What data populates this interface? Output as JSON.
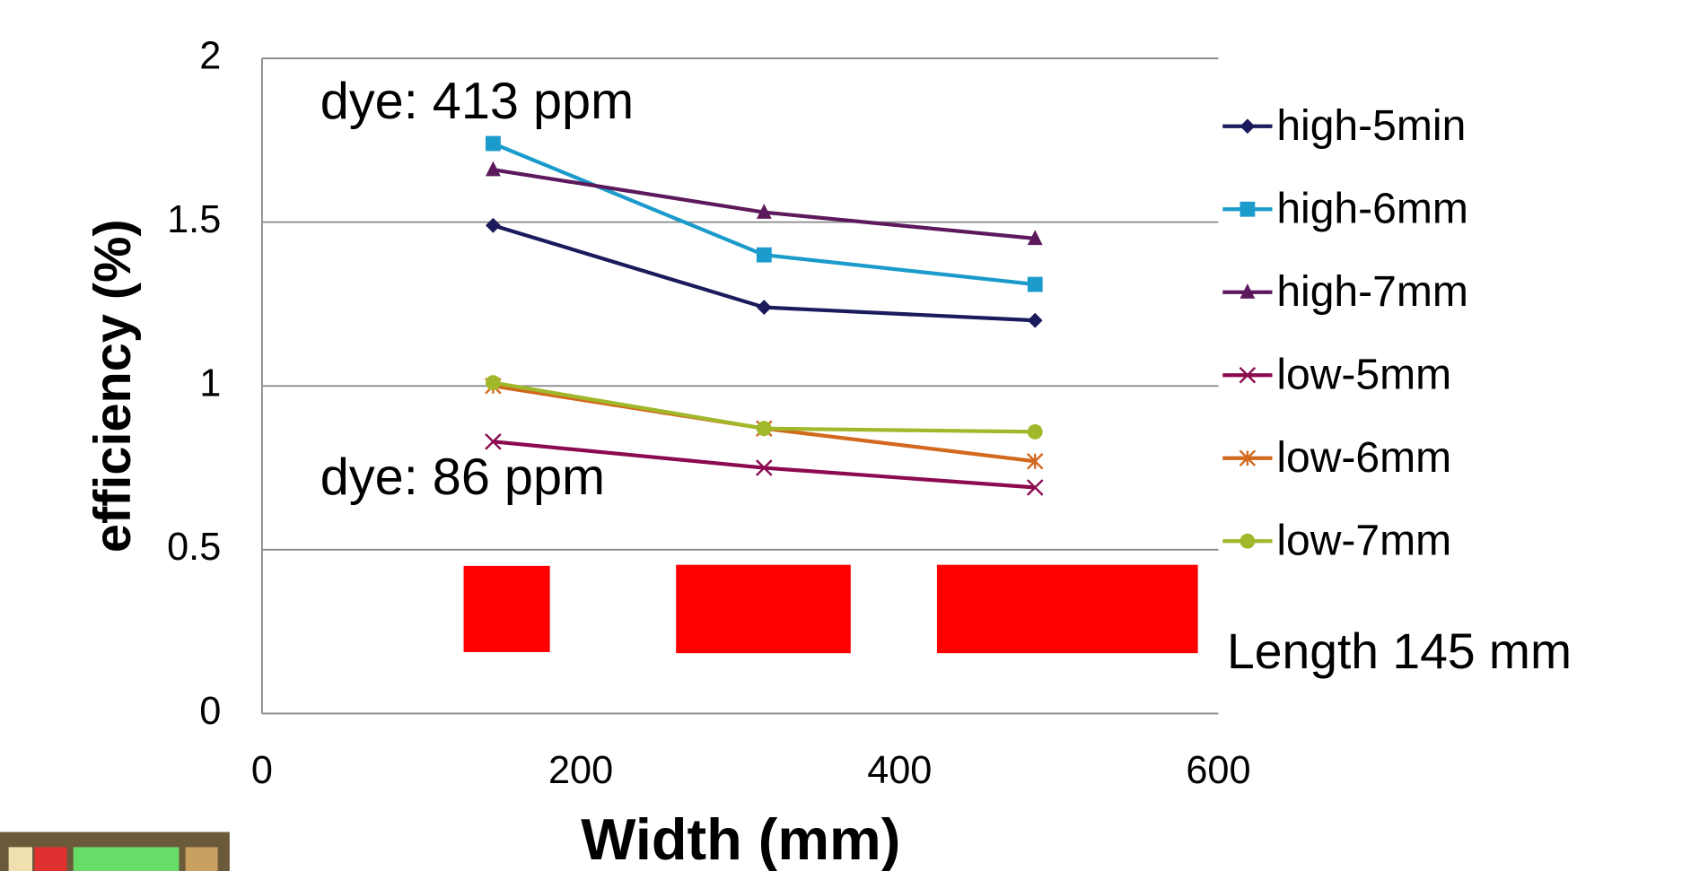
{
  "chart_data": {
    "type": "line",
    "x_label": "Width (mm)",
    "y_label": "efficiency (%)",
    "annotations": [
      "dye: 413 ppm",
      "dye: 86 ppm",
      "Length 145 mm"
    ],
    "x": [
      145,
      315,
      485
    ],
    "series": [
      {
        "name": "high-5min",
        "color": "#1b1a5c",
        "marker": "diamond",
        "values": [
          1.49,
          1.24,
          1.2
        ]
      },
      {
        "name": "high-6mm",
        "color": "#1a9bcb",
        "marker": "square",
        "values": [
          1.74,
          1.4,
          1.31
        ]
      },
      {
        "name": "high-7mm",
        "color": "#5c1a5c",
        "marker": "triangle",
        "values": [
          1.66,
          1.53,
          1.45
        ]
      },
      {
        "name": "low-5mm",
        "color": "#8b0a50",
        "marker": "x",
        "values": [
          0.83,
          0.75,
          0.69
        ]
      },
      {
        "name": "low-6mm",
        "color": "#d2691e",
        "marker": "star",
        "values": [
          1.0,
          0.87,
          0.77
        ]
      },
      {
        "name": "low-7mm",
        "color": "#a0b82a",
        "marker": "circle",
        "values": [
          1.01,
          0.87,
          0.86
        ]
      }
    ],
    "xlim": [
      0,
      600
    ],
    "xticks": [
      0,
      200,
      400,
      600
    ],
    "ylim": [
      0,
      2
    ],
    "yticks": [
      0,
      0.5,
      1,
      1.5,
      2
    ],
    "grid": true,
    "legend": "right"
  }
}
